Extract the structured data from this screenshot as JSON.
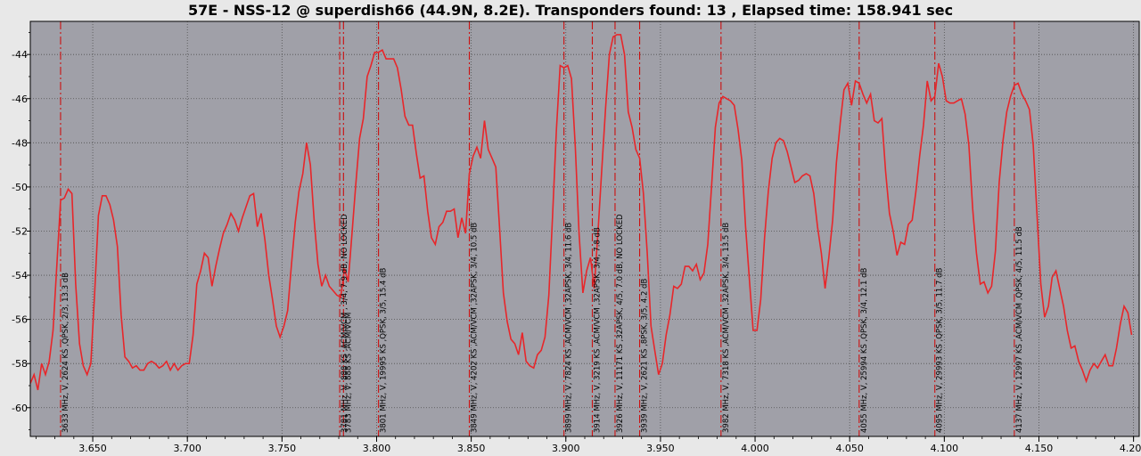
{
  "chart_data": {
    "type": "line",
    "title": "57E - NSS-12 @ superdish66 (44.9N, 8.2E). Transponders found: 13 , Elapsed time: 158.941 sec",
    "xlabel": "",
    "ylabel": "",
    "xlim": [
      3.617,
      4.203
    ],
    "ylim": [
      -61.3,
      -42.5
    ],
    "xticks": [
      3.65,
      3.7,
      3.75,
      3.8,
      3.85,
      3.9,
      3.95,
      4.0,
      4.05,
      4.1,
      4.15,
      4.2
    ],
    "xtick_labels": [
      "3.650",
      "3.700",
      "3.750",
      "3.800",
      "3.850",
      "3.900",
      "3.950",
      "4.000",
      "4.050",
      "4.100",
      "4.150",
      "4.200"
    ],
    "yticks": [
      -44,
      -46,
      -48,
      -50,
      -52,
      -54,
      -56,
      -58,
      -60
    ],
    "ytick_labels": [
      "-44",
      "-46",
      "-48",
      "-50",
      "-52",
      "-54",
      "-56",
      "-58",
      "-60"
    ],
    "grid": true,
    "colors": {
      "plot_bg": "#a0a0a8",
      "line": "#e8262a",
      "marker": "#cc1010",
      "grid": "#505050"
    },
    "series": [
      {
        "x": [
          3.617,
          3.619,
          3.621,
          3.623,
          3.625,
          3.627,
          3.629,
          3.631,
          3.633,
          3.635,
          3.637,
          3.639,
          3.641,
          3.643,
          3.645,
          3.647,
          3.649,
          3.651,
          3.653,
          3.655,
          3.657,
          3.659,
          3.661,
          3.663,
          3.665,
          3.667,
          3.669,
          3.671,
          3.673,
          3.675,
          3.677,
          3.679,
          3.681,
          3.683,
          3.685,
          3.687,
          3.689,
          3.691,
          3.693,
          3.695,
          3.697,
          3.699,
          3.701,
          3.703,
          3.705,
          3.707,
          3.709,
          3.711,
          3.713,
          3.715,
          3.717,
          3.719,
          3.721,
          3.723,
          3.725,
          3.727,
          3.729,
          3.731,
          3.733,
          3.735,
          3.737,
          3.739,
          3.741,
          3.743,
          3.745,
          3.747,
          3.749,
          3.751,
          3.753,
          3.755,
          3.757,
          3.759,
          3.761,
          3.763,
          3.765,
          3.767,
          3.769,
          3.771,
          3.773,
          3.775,
          3.777,
          3.779,
          3.781,
          3.783,
          3.785,
          3.787,
          3.789,
          3.791,
          3.793,
          3.795,
          3.797,
          3.799,
          3.801,
          3.803,
          3.805,
          3.807,
          3.809,
          3.811,
          3.813,
          3.815,
          3.817,
          3.819,
          3.821,
          3.823,
          3.825,
          3.827,
          3.829,
          3.831,
          3.833,
          3.835,
          3.837,
          3.839,
          3.841,
          3.843,
          3.845,
          3.847,
          3.849,
          3.851,
          3.853,
          3.855,
          3.857,
          3.859,
          3.861,
          3.863,
          3.865,
          3.867,
          3.869,
          3.871,
          3.873,
          3.875,
          3.877,
          3.879,
          3.881,
          3.883,
          3.885,
          3.887,
          3.889,
          3.891,
          3.893,
          3.895,
          3.897,
          3.899,
          3.901,
          3.903,
          3.905,
          3.907,
          3.909,
          3.911,
          3.913,
          3.915,
          3.917,
          3.919,
          3.921,
          3.923,
          3.925,
          3.927,
          3.929,
          3.931,
          3.933,
          3.935,
          3.937,
          3.939,
          3.941,
          3.943,
          3.945,
          3.947,
          3.949,
          3.951,
          3.953,
          3.955,
          3.957,
          3.959,
          3.961,
          3.963,
          3.965,
          3.967,
          3.969,
          3.971,
          3.973,
          3.975,
          3.977,
          3.979,
          3.981,
          3.983,
          3.985,
          3.987,
          3.989,
          3.991,
          3.993,
          3.995,
          3.997,
          3.999,
          4.001,
          4.003,
          4.005,
          4.007,
          4.009,
          4.011,
          4.013,
          4.015,
          4.017,
          4.019,
          4.021,
          4.023,
          4.025,
          4.027,
          4.029,
          4.031,
          4.033,
          4.035,
          4.037,
          4.039,
          4.041,
          4.043,
          4.045,
          4.047,
          4.049,
          4.051,
          4.053,
          4.055,
          4.057,
          4.059,
          4.061,
          4.063,
          4.065,
          4.067,
          4.069,
          4.071,
          4.073,
          4.075,
          4.077,
          4.079,
          4.081,
          4.083,
          4.085,
          4.087,
          4.089,
          4.091,
          4.093,
          4.095,
          4.097,
          4.099,
          4.101,
          4.103,
          4.105,
          4.107,
          4.109,
          4.111,
          4.113,
          4.115,
          4.117,
          4.119,
          4.121,
          4.123,
          4.125,
          4.127,
          4.129,
          4.131,
          4.133,
          4.135,
          4.137,
          4.139,
          4.141,
          4.143,
          4.145,
          4.147,
          4.149,
          4.151,
          4.153,
          4.155,
          4.157,
          4.159,
          4.161,
          4.163,
          4.165,
          4.167,
          4.169,
          4.171,
          4.173,
          4.175,
          4.177,
          4.179,
          4.181,
          4.183,
          4.185,
          4.187,
          4.189,
          4.191,
          4.193,
          4.195,
          4.197,
          4.199
        ],
        "y": [
          -58.9,
          -58.5,
          -59.2,
          -58.0,
          -58.5,
          -57.9,
          -56.5,
          -53.6,
          -50.6,
          -50.5,
          -50.1,
          -50.3,
          -54.4,
          -57.1,
          -58.1,
          -58.5,
          -58.0,
          -54.8,
          -51.3,
          -50.4,
          -50.4,
          -50.8,
          -51.5,
          -52.7,
          -55.8,
          -57.7,
          -57.9,
          -58.2,
          -58.1,
          -58.3,
          -58.3,
          -58.0,
          -57.9,
          -58.0,
          -58.2,
          -58.1,
          -57.9,
          -58.3,
          -58.0,
          -58.3,
          -58.1,
          -58.0,
          -58.0,
          -56.7,
          -54.4,
          -53.8,
          -53.0,
          -53.2,
          -54.5,
          -53.6,
          -52.8,
          -52.1,
          -51.7,
          -51.2,
          -51.5,
          -52.0,
          -51.4,
          -50.9,
          -50.4,
          -50.3,
          -51.8,
          -51.2,
          -52.4,
          -54.0,
          -55.1,
          -56.3,
          -56.8,
          -56.3,
          -55.6,
          -53.5,
          -51.6,
          -50.2,
          -49.4,
          -48.0,
          -49.0,
          -51.5,
          -53.5,
          -54.5,
          -54.0,
          -54.5,
          -54.7,
          -54.9,
          -55.0,
          -53.7,
          -54.3,
          -52.1,
          -49.9,
          -47.8,
          -46.9,
          -45.0,
          -44.5,
          -43.9,
          -43.9,
          -43.8,
          -44.2,
          -44.2,
          -44.2,
          -44.6,
          -45.6,
          -46.8,
          -47.2,
          -47.2,
          -48.5,
          -49.6,
          -49.5,
          -51.1,
          -52.3,
          -52.6,
          -51.8,
          -51.6,
          -51.1,
          -51.1,
          -51.0,
          -52.3,
          -51.4,
          -52.1,
          -49.4,
          -48.6,
          -48.2,
          -48.7,
          -47.0,
          -48.3,
          -48.7,
          -49.1,
          -51.9,
          -54.8,
          -56.1,
          -56.9,
          -57.1,
          -57.6,
          -56.6,
          -57.9,
          -58.1,
          -58.2,
          -57.6,
          -57.4,
          -56.8,
          -54.9,
          -51.3,
          -47.4,
          -44.5,
          -44.6,
          -44.5,
          -45.1,
          -48.2,
          -52.1,
          -54.8,
          -53.8,
          -53.2,
          -54.6,
          -52.0,
          -49.2,
          -46.4,
          -44.0,
          -43.2,
          -43.1,
          -43.1,
          -44.0,
          -46.6,
          -47.3,
          -48.3,
          -48.7,
          -50.3,
          -53.0,
          -56.3,
          -57.4,
          -58.5,
          -58.0,
          -56.7,
          -55.8,
          -54.5,
          -54.6,
          -54.4,
          -53.6,
          -53.6,
          -53.8,
          -53.5,
          -54.2,
          -53.9,
          -52.6,
          -50.0,
          -47.3,
          -46.2,
          -45.9,
          -46.0,
          -46.1,
          -46.3,
          -47.4,
          -48.8,
          -51.8,
          -54.2,
          -56.5,
          -56.5,
          -55.1,
          -52.3,
          -50.2,
          -48.7,
          -48.0,
          -47.8,
          -47.9,
          -48.4,
          -49.1,
          -49.8,
          -49.7,
          -49.5,
          -49.4,
          -49.5,
          -50.3,
          -51.8,
          -53.0,
          -54.6,
          -53.2,
          -51.5,
          -48.9,
          -47.1,
          -45.6,
          -45.3,
          -46.3,
          -45.2,
          -45.3,
          -45.8,
          -46.2,
          -45.8,
          -47.0,
          -47.1,
          -46.9,
          -49.3,
          -51.2,
          -52.0,
          -53.1,
          -52.5,
          -52.6,
          -51.7,
          -51.5,
          -50.2,
          -48.6,
          -47.2,
          -45.2,
          -46.1,
          -45.9,
          -44.4,
          -45.0,
          -46.1,
          -46.2,
          -46.2,
          -46.1,
          -46.0,
          -46.7,
          -48.1,
          -51.0,
          -53.0,
          -54.4,
          -54.3,
          -54.8,
          -54.5,
          -52.9,
          -49.8,
          -47.9,
          -46.6,
          -45.9,
          -45.4,
          -45.3,
          -45.8,
          -46.1,
          -46.5,
          -48.1,
          -51.3,
          -54.4,
          -55.9,
          -55.4,
          -54.1,
          -53.8,
          -54.6,
          -55.4,
          -56.5,
          -57.3,
          -57.2,
          -57.9,
          -58.3,
          -58.8,
          -58.3,
          -58.0,
          -58.2,
          -57.9,
          -57.6,
          -58.1,
          -58.1,
          -57.3,
          -56.2,
          -55.4,
          -55.7,
          -56.7
        ]
      }
    ],
    "transponders": [
      {
        "freq": 3.633,
        "label": "3633 MHz, V, 2624 KS ,QPSK, 2/3, 13.3 dB"
      },
      {
        "freq": 3.7805,
        "label": "3781 MHz, V, 888 KS ,ACM/VCM , 3/4, 7.9 dB, NO LOCKED"
      },
      {
        "freq": 3.7825,
        "label": "3783 MHz, V, 888 KS ,ACM/VCM"
      },
      {
        "freq": 3.801,
        "label": "3801 MHz, V, 19995 KS ,QPSK, 3/5, 15.4 dB"
      },
      {
        "freq": 3.849,
        "label": "3849 MHz, V, 4202 KS ,ACM/VCM ,32APSK, 3/4, 10.5 dB"
      },
      {
        "freq": 3.899,
        "label": "3899 MHz, V, 7824 KS ,ACM/VCM ,32APSK, 3/4, 11.6 dB"
      },
      {
        "freq": 3.914,
        "label": "3914 MHz, V, 3219 KS ,ACM/VCM ,32APSK, 3/4, 7.8 dB"
      },
      {
        "freq": 3.926,
        "label": "3926 MHz, V, 11171 KS ,32APSK, 4/5, 7.0 dB, NO LOCKED"
      },
      {
        "freq": 3.939,
        "label": "3939 MHz, V, 2621 KS ,8PSK, 3/5, 4.2 dB"
      },
      {
        "freq": 3.982,
        "label": "3982 MHz, V, 7318 KS ,ACM/VCM ,32APSK, 3/4, 13.5 dB"
      },
      {
        "freq": 4.055,
        "label": "4055 MHz, V, 25994 KS ,QPSK, 3/4, 12.1 dB"
      },
      {
        "freq": 4.095,
        "label": "4095 MHz, V, 29993 KS ,QPSK, 3/5, 11.7 dB"
      },
      {
        "freq": 4.137,
        "label": "4137 MHz, V, 12997 KS ,ACM/VCM ,QPSK, 4/5, 11.5 dB"
      }
    ]
  }
}
